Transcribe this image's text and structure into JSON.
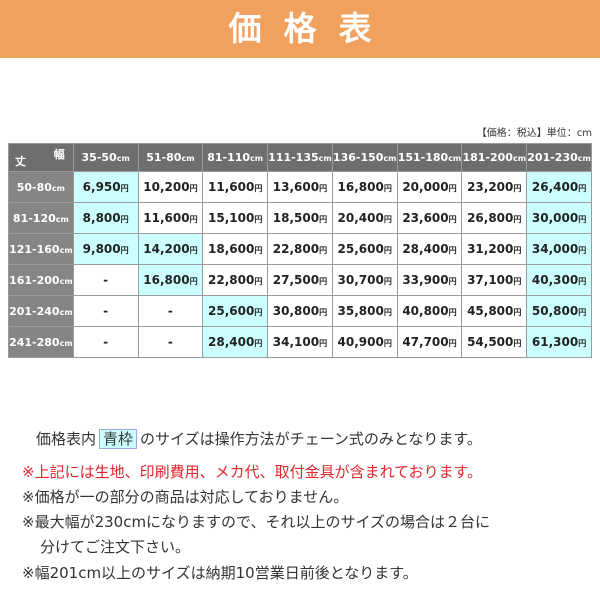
{
  "header": {
    "title": "価格表"
  },
  "table": {
    "note": "【価格：税込】単位：cm",
    "corner": {
      "width_label": "幅",
      "height_label": "丈"
    },
    "columns": [
      "35-50cm",
      "51-80cm",
      "81-110cm",
      "111-135cm",
      "136-150cm",
      "151-180cm",
      "181-200cm",
      "201-230cm"
    ],
    "rows": [
      {
        "label": "50-80cm",
        "cells": [
          "6,950円",
          "10,200円",
          "11,600円",
          "13,600円",
          "16,800円",
          "20,000円",
          "23,200円",
          "26,400円"
        ]
      },
      {
        "label": "81-120cm",
        "cells": [
          "8,800円",
          "11,600円",
          "15,100円",
          "18,500円",
          "20,400円",
          "23,600円",
          "26,800円",
          "30,000円"
        ]
      },
      {
        "label": "121-160cm",
        "cells": [
          "9,800円",
          "14,200円",
          "18,600円",
          "22,800円",
          "25,600円",
          "28,400円",
          "31,200円",
          "34,000円"
        ]
      },
      {
        "label": "161-200cm",
        "cells": [
          "-",
          "16,800円",
          "22,800円",
          "27,500円",
          "30,700円",
          "33,900円",
          "37,100円",
          "40,300円"
        ]
      },
      {
        "label": "201-240cm",
        "cells": [
          "-",
          "-",
          "25,600円",
          "30,800円",
          "35,800円",
          "40,800円",
          "45,800円",
          "50,800円"
        ]
      },
      {
        "label": "241-280cm",
        "cells": [
          "-",
          "-",
          "28,400円",
          "34,100円",
          "40,900円",
          "47,700円",
          "54,500円",
          "61,300円"
        ]
      }
    ]
  },
  "notes": {
    "frame_line": {
      "before": "価格表内",
      "frame": "青枠",
      "after": "のサイズは操作方法がチェーン式のみとなります。"
    },
    "lines": [
      "※上記には生地、印刷費用、メカ代、取付金具が含まれております。",
      "※価格が一の部分の商品は対応しておりません。",
      "※最大幅が230cmになりますので、それ以上のサイズの場合は２台に",
      "分けてご注文下さい。",
      "※幅201cm以上のサイズは納期10営業日前後となります。"
    ]
  }
}
